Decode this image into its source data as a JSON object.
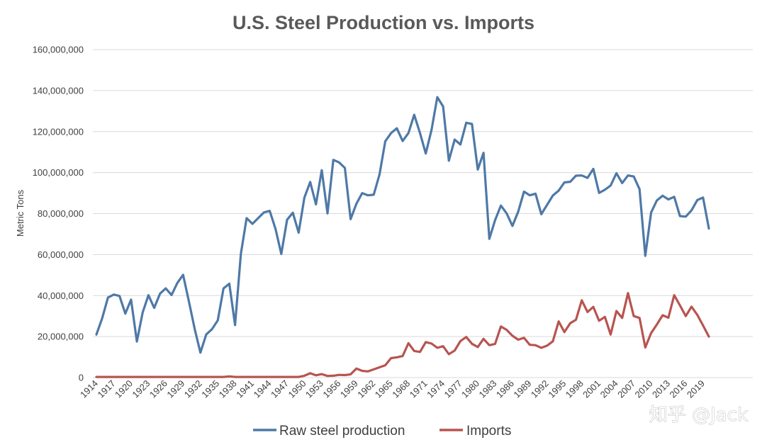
{
  "chart_data": {
    "type": "line",
    "title": "U.S. Steel Production vs. Imports",
    "xlabel": "",
    "ylabel": "Metric Tons",
    "ylim": [
      0,
      160000000
    ],
    "yticks": [
      0,
      20000000,
      40000000,
      60000000,
      80000000,
      100000000,
      120000000,
      140000000,
      160000000
    ],
    "ytick_labels": [
      "0",
      "20,000,000",
      "40,000,000",
      "60,000,000",
      "80,000,000",
      "100,000,000",
      "120,000,000",
      "140,000,000",
      "160,000,000"
    ],
    "xtick_labels": [
      "1914",
      "1917",
      "1920",
      "1923",
      "1926",
      "1929",
      "1932",
      "1935",
      "1938",
      "1941",
      "1944",
      "1947",
      "1950",
      "1953",
      "1956",
      "1959",
      "1962",
      "1965",
      "1968",
      "1971",
      "1974",
      "1977",
      "1980",
      "1983",
      "1986",
      "1989",
      "1992",
      "1995",
      "1998",
      "2001",
      "2004",
      "2007",
      "2010",
      "2013",
      "2016",
      "2019"
    ],
    "grid": true,
    "legend_position": "bottom",
    "x": [
      1914,
      1915,
      1916,
      1917,
      1918,
      1919,
      1920,
      1921,
      1922,
      1923,
      1924,
      1925,
      1926,
      1927,
      1928,
      1929,
      1930,
      1931,
      1932,
      1933,
      1934,
      1935,
      1936,
      1937,
      1938,
      1939,
      1940,
      1941,
      1942,
      1943,
      1944,
      1945,
      1946,
      1947,
      1948,
      1949,
      1950,
      1951,
      1952,
      1953,
      1954,
      1955,
      1956,
      1957,
      1958,
      1959,
      1960,
      1961,
      1962,
      1963,
      1964,
      1965,
      1966,
      1967,
      1968,
      1969,
      1970,
      1971,
      1972,
      1973,
      1974,
      1975,
      1976,
      1977,
      1978,
      1979,
      1980,
      1981,
      1982,
      1983,
      1984,
      1985,
      1986,
      1987,
      1988,
      1989,
      1990,
      1991,
      1992,
      1993,
      1994,
      1995,
      1996,
      1997,
      1998,
      1999,
      2000,
      2001,
      2002,
      2003,
      2004,
      2005,
      2006,
      2007,
      2008,
      2009,
      2010,
      2011,
      2012,
      2013,
      2014,
      2015,
      2016,
      2017,
      2018,
      2019,
      2020
    ],
    "series": [
      {
        "name": "Raw steel production",
        "color": "#4e79a7",
        "values": [
          21000000,
          29000000,
          39000000,
          40500000,
          39800000,
          31200000,
          38000000,
          17600000,
          31700000,
          40200000,
          34000000,
          40900000,
          43500000,
          40300000,
          46100000,
          50100000,
          37300000,
          23800000,
          12200000,
          21000000,
          23600000,
          27900000,
          43500000,
          45800000,
          25600000,
          60400000,
          77800000,
          75000000,
          77800000,
          80600000,
          81300000,
          72500000,
          60300000,
          77000000,
          80400000,
          70700000,
          87800000,
          95400000,
          84500000,
          101200000,
          80100000,
          106200000,
          105000000,
          102300000,
          77300000,
          84800000,
          90000000,
          88900000,
          89200000,
          99100000,
          115300000,
          119300000,
          121600000,
          115400000,
          119300000,
          128200000,
          119300000,
          109300000,
          120900000,
          136800000,
          132200000,
          105800000,
          116100000,
          113700000,
          124300000,
          123700000,
          101500000,
          109600000,
          67700000,
          76800000,
          83900000,
          80100000,
          74000000,
          80900000,
          90700000,
          88900000,
          89700000,
          79700000,
          84300000,
          88800000,
          91200000,
          95200000,
          95500000,
          98500000,
          98600000,
          97400000,
          101800000,
          90100000,
          91600000,
          93700000,
          99700000,
          94900000,
          98600000,
          98100000,
          91900000,
          59400000,
          80500000,
          86400000,
          88700000,
          86900000,
          88200000,
          78800000,
          78500000,
          81600000,
          86600000,
          87800000,
          72700000
        ]
      },
      {
        "name": "Imports",
        "color": "#b85450",
        "values": [
          300000,
          300000,
          300000,
          300000,
          300000,
          300000,
          300000,
          300000,
          300000,
          300000,
          300000,
          300000,
          300000,
          300000,
          300000,
          300000,
          300000,
          300000,
          300000,
          300000,
          300000,
          300000,
          300000,
          600000,
          300000,
          300000,
          300000,
          300000,
          300000,
          300000,
          300000,
          300000,
          300000,
          300000,
          300000,
          300000,
          900000,
          2100000,
          1100000,
          1700000,
          800000,
          900000,
          1300000,
          1200000,
          1600000,
          4400000,
          3300000,
          3000000,
          4000000,
          5000000,
          6000000,
          9500000,
          9900000,
          10500000,
          16800000,
          13000000,
          12500000,
          17300000,
          16600000,
          14500000,
          15300000,
          11400000,
          13200000,
          17800000,
          19800000,
          16500000,
          14900000,
          18900000,
          15800000,
          16400000,
          24900000,
          23300000,
          20400000,
          18500000,
          19400000,
          16000000,
          15800000,
          14500000,
          15600000,
          17700000,
          27400000,
          22200000,
          26500000,
          28200000,
          37700000,
          32000000,
          34500000,
          27700000,
          29600000,
          21000000,
          32500000,
          29100000,
          41200000,
          30000000,
          29100000,
          14700000,
          21700000,
          25900000,
          30400000,
          29200000,
          40200000,
          35200000,
          30000000,
          34600000,
          30600000,
          25400000,
          20000000
        ]
      }
    ]
  },
  "legend": {
    "items": [
      {
        "label": "Raw steel production",
        "color": "#4e79a7"
      },
      {
        "label": "Imports",
        "color": "#b85450"
      }
    ]
  },
  "watermark": "知乎 @Jack"
}
